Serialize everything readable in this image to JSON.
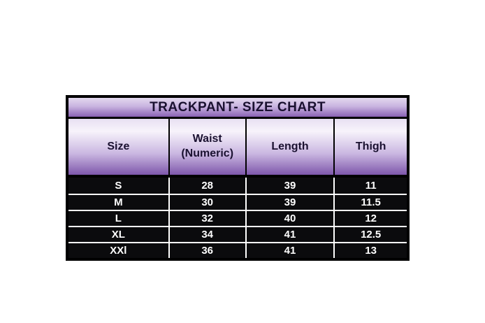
{
  "chart_data": {
    "type": "table",
    "title": "TRACKPANT- SIZE CHART",
    "columns": [
      "Size",
      "Waist (Numeric)",
      "Length",
      "Thigh"
    ],
    "rows": [
      [
        "S",
        "28",
        "39",
        "11"
      ],
      [
        "M",
        "30",
        "39",
        "11.5"
      ],
      [
        "L",
        "32",
        "40",
        "12"
      ],
      [
        "XL",
        "34",
        "41",
        "12.5"
      ],
      [
        "XXl",
        "36",
        "41",
        "13"
      ]
    ],
    "legend": "none",
    "grid": "on"
  },
  "colors": {
    "table-border": "#000000",
    "title-text": "#1a1130",
    "grad-light-title": "#e3d8ef",
    "grad-light": "#f7f3fb",
    "grad-purple": "#8a62b3",
    "grad-purple-deep": "#7e57ab",
    "data-bg": "#0b0b0d",
    "data-text": "#ffffff",
    "grid-line": "#ffffff"
  }
}
